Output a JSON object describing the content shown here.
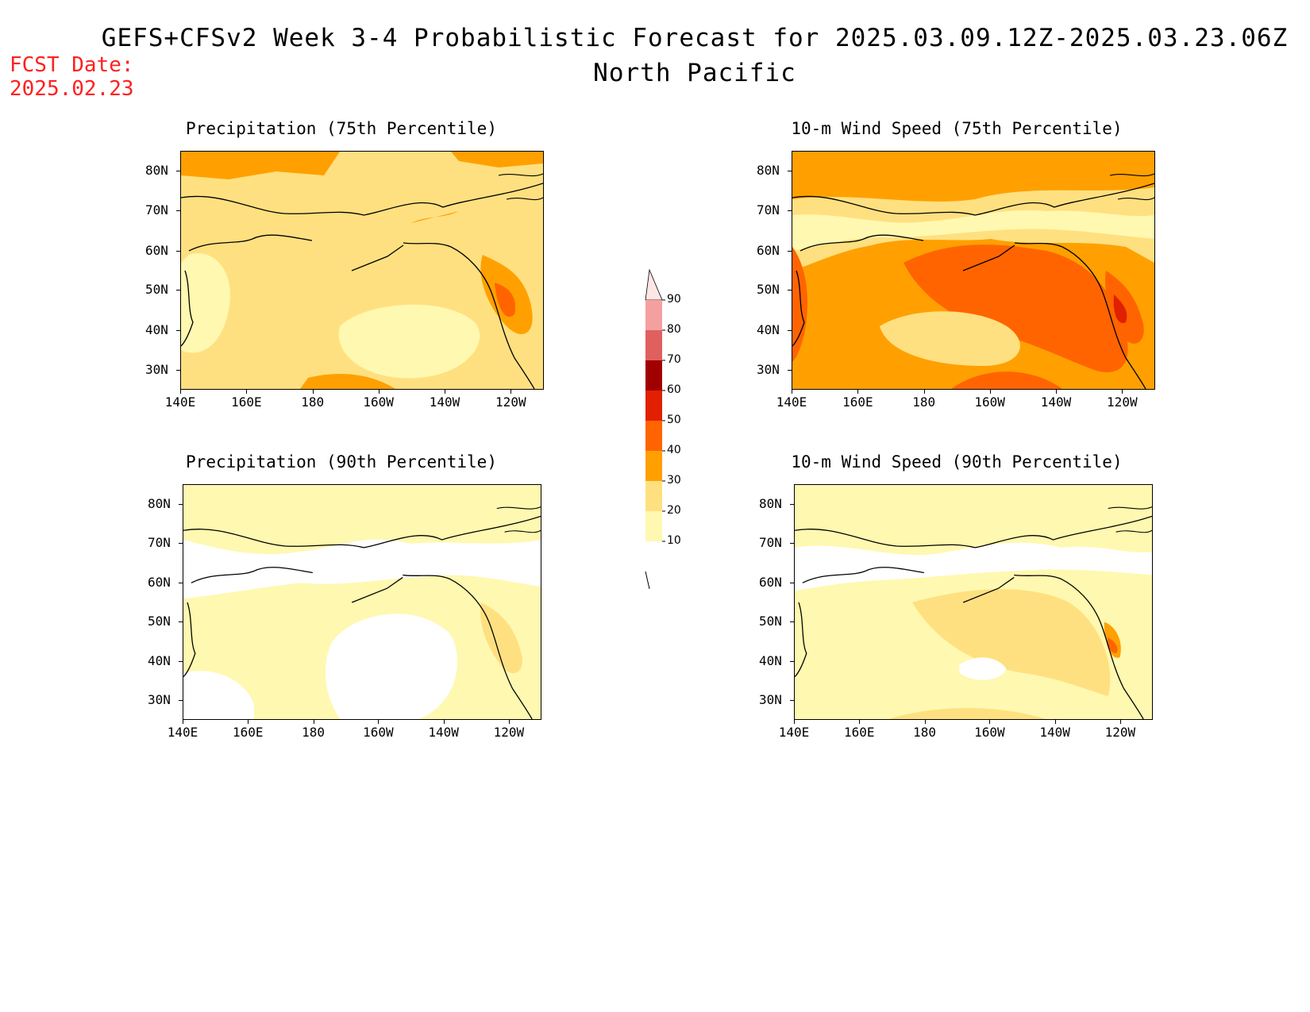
{
  "header": {
    "title": "GEFS+CFSv2 Week 3-4 Probabilistic Forecast for 2025.03.09.12Z-2025.03.23.06Z",
    "subtitle": "North Pacific",
    "fcst_date_label": "FCST Date:",
    "fcst_date_value": "2025.02.23"
  },
  "axes": {
    "lon_labels": [
      "140E",
      "160E",
      "180",
      "160W",
      "140W",
      "120W"
    ],
    "lat_labels": [
      "80N",
      "70N",
      "60N",
      "50N",
      "40N",
      "30N"
    ]
  },
  "panels": [
    {
      "id": "precip75",
      "title": "Precipitation (75th Percentile)",
      "background_level": 20
    },
    {
      "id": "wind75",
      "title": "10-m Wind Speed (75th Percentile)",
      "background_level": 30
    },
    {
      "id": "precip90",
      "title": "Precipitation (90th Percentile)",
      "background_level": 10
    },
    {
      "id": "wind90",
      "title": "10-m Wind Speed (90th Percentile)",
      "background_level": 10
    }
  ],
  "colorbar": {
    "labels": [
      "90",
      "80",
      "70",
      "60",
      "50",
      "40",
      "30",
      "20",
      "10"
    ],
    "colors": [
      "#ffe6e6",
      "#f4a0a0",
      "#e06060",
      "#a00000",
      "#e02000",
      "#ff6400",
      "#ffa000",
      "#ffe080",
      "#fff8b0"
    ],
    "levels": [
      10,
      20,
      30,
      40,
      50,
      60,
      70,
      80,
      90
    ]
  }
}
